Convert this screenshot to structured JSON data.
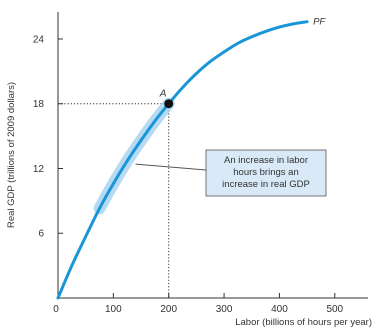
{
  "chart_data": {
    "type": "line",
    "title": "",
    "xlabel": "Labor (billions of hours per year)",
    "ylabel": "Real GDP (trillions of 2009 dollars)",
    "xlim": [
      0,
      560
    ],
    "ylim": [
      0,
      26.5
    ],
    "x_ticks": [
      0,
      100,
      200,
      300,
      400,
      500
    ],
    "y_ticks": [
      6,
      12,
      18,
      24
    ],
    "grid": false,
    "series": [
      {
        "name": "PF",
        "x": [
          0,
          25,
          50,
          75,
          100,
          125,
          150,
          175,
          200,
          225,
          250,
          275,
          300,
          325,
          350,
          375,
          400,
          425,
          450
        ],
        "y": [
          0,
          3.0,
          5.7,
          8.3,
          10.6,
          12.7,
          14.6,
          16.4,
          18.0,
          19.5,
          20.8,
          21.9,
          22.8,
          23.6,
          24.2,
          24.7,
          25.1,
          25.4,
          25.6
        ],
        "color": "#1a96d8"
      }
    ],
    "highlight": {
      "from_x": 75,
      "to_x": 200,
      "color": "#a9d4f0"
    },
    "point": {
      "label": "A",
      "x": 200,
      "y": 18
    },
    "annotation": "An increase in labor hours brings an increase in real GDP",
    "annotation_lines": [
      "An increase in labor",
      "hours brings an",
      "increase in real GDP"
    ],
    "annotation_box_color": "#d9e9f7"
  }
}
